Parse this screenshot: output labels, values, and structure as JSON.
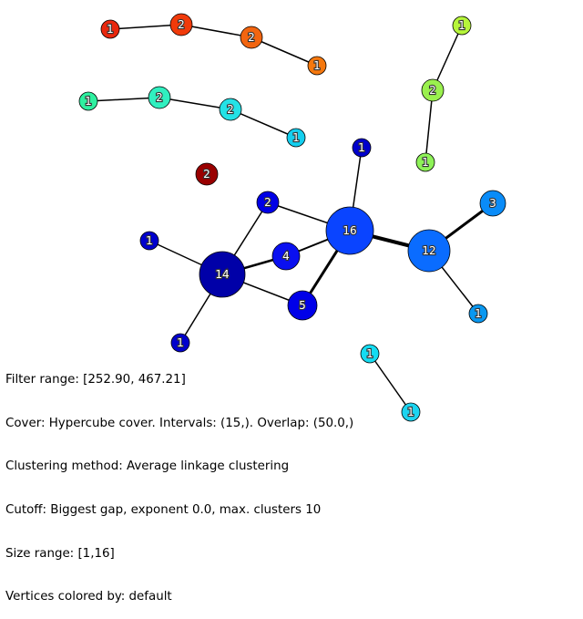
{
  "graph": {
    "nodes": [
      {
        "id": "a1",
        "label": "1",
        "color": "#e8270d"
      },
      {
        "id": "a2",
        "label": "2",
        "color": "#f03a0a"
      },
      {
        "id": "a3",
        "label": "2",
        "color": "#f26510"
      },
      {
        "id": "a4",
        "label": "1",
        "color": "#f5780e"
      },
      {
        "id": "b1",
        "label": "1",
        "color": "#2ef0a0"
      },
      {
        "id": "b2",
        "label": "2",
        "color": "#30f0c0"
      },
      {
        "id": "b3",
        "label": "2",
        "color": "#24e2e6"
      },
      {
        "id": "b4",
        "label": "1",
        "color": "#14cfef"
      },
      {
        "id": "c1",
        "label": "1",
        "color": "#b6f53a"
      },
      {
        "id": "c2",
        "label": "2",
        "color": "#9af04e"
      },
      {
        "id": "c3",
        "label": "1",
        "color": "#8ef258"
      },
      {
        "id": "d1",
        "label": "2",
        "color": "#990000"
      },
      {
        "id": "e1",
        "label": "1",
        "color": "#0000cc"
      },
      {
        "id": "e2",
        "label": "2",
        "color": "#0000e6"
      },
      {
        "id": "e3",
        "label": "16",
        "color": "#0a44ff"
      },
      {
        "id": "e4",
        "label": "1",
        "color": "#0000cd"
      },
      {
        "id": "e5",
        "label": "4",
        "color": "#0a10f0"
      },
      {
        "id": "e6",
        "label": "14",
        "color": "#0000a8"
      },
      {
        "id": "e7",
        "label": "5",
        "color": "#0000e8"
      },
      {
        "id": "e8",
        "label": "12",
        "color": "#0a6cff"
      },
      {
        "id": "e9",
        "label": "3",
        "color": "#0a8cf8"
      },
      {
        "id": "e10",
        "label": "1",
        "color": "#0a98f0"
      },
      {
        "id": "e11",
        "label": "1",
        "color": "#0000cc"
      },
      {
        "id": "f1",
        "label": "1",
        "color": "#14dcf2"
      },
      {
        "id": "f2",
        "label": "1",
        "color": "#1cd4f0"
      }
    ]
  },
  "info": {
    "filter_range": "Filter range: [252.90, 467.21]",
    "cover": "Cover: Hypercube cover. Intervals: (15,). Overlap: (50.0,)",
    "clustering": "Clustering method: Average linkage clustering",
    "cutoff": "Cutoff: Biggest gap, exponent 0.0, max. clusters 10",
    "size_range": "Size range: [1,16]",
    "vertices": "Vertices colored by: default"
  }
}
